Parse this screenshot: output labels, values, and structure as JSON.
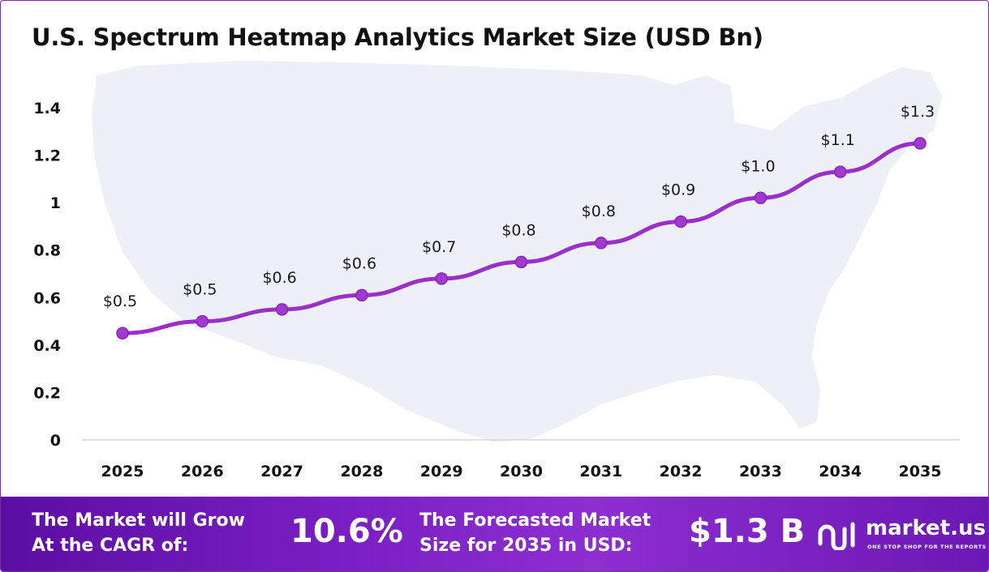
{
  "chart_data": {
    "type": "line",
    "title": "U.S. Spectrum Heatmap Analytics Market Size (USD Bn)",
    "xlabel": "",
    "ylabel": "",
    "categories": [
      "2025",
      "2026",
      "2027",
      "2028",
      "2029",
      "2030",
      "2031",
      "2032",
      "2033",
      "2034",
      "2035"
    ],
    "values": [
      0.45,
      0.5,
      0.55,
      0.61,
      0.68,
      0.75,
      0.83,
      0.92,
      1.02,
      1.13,
      1.25
    ],
    "data_labels": [
      "$0.5",
      "$0.5",
      "$0.6",
      "$0.6",
      "$0.7",
      "$0.8",
      "$0.8",
      "$0.9",
      "$1.0",
      "$1.1",
      "$1.3"
    ],
    "y_ticks": [
      "0",
      "0.2",
      "0.4",
      "0.6",
      "0.8",
      "1",
      "1.2",
      "1.4"
    ],
    "ylim": [
      0,
      1.4
    ],
    "grid": false,
    "line_color": "#9b2fc9",
    "marker_color": "#a23ad0"
  },
  "footer": {
    "cagr_text_line1": "The Market will Grow",
    "cagr_text_line2": "At the CAGR of:",
    "cagr_value": "10.6%",
    "forecast_text_line1": "The Forecasted Market",
    "forecast_text_line2": "Size for 2035 in USD:",
    "forecast_value": "$1.3 B",
    "brand_name": "market.us",
    "brand_tagline": "ONE STOP SHOP FOR THE REPORTS",
    "background_color": "#7a1fc4"
  }
}
